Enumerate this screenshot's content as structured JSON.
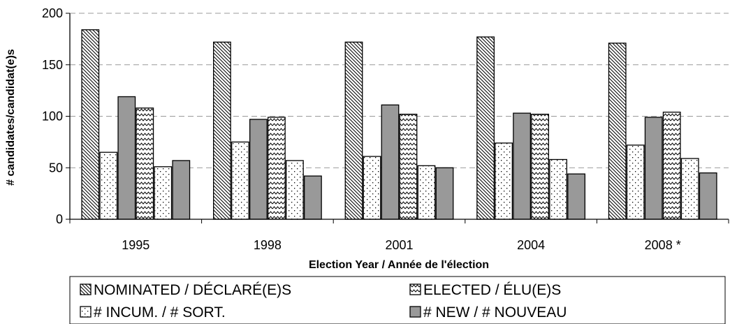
{
  "chart_data": {
    "type": "bar",
    "categories": [
      "1995",
      "1998",
      "2001",
      "2004",
      "2008 *"
    ],
    "series": [
      {
        "name": "NOMINATED / DÉCLARÉ(E)S",
        "pattern": "diagonal",
        "values": [
          184,
          172,
          172,
          177,
          171
        ]
      },
      {
        "name": "# INCUM. / # SORT.",
        "pattern": "dots",
        "values": [
          65,
          75,
          61,
          74,
          72
        ]
      },
      {
        "name": "# NEW  /  # NOUVEAU",
        "pattern": "solid",
        "values": [
          119,
          97,
          111,
          103,
          99
        ]
      },
      {
        "name": "ELECTED / ÉLU(E)S",
        "pattern": "wave",
        "values": [
          108,
          99,
          102,
          102,
          104
        ]
      },
      {
        "name": "",
        "pattern": "dots",
        "values": [
          51,
          57,
          52,
          58,
          59
        ]
      },
      {
        "name": "",
        "pattern": "solid",
        "values": [
          57,
          42,
          50,
          44,
          45
        ]
      }
    ],
    "xlabel": "Election Year / Année  de l'élection",
    "ylabel": "# candidates/candidat(e)s",
    "ylim": [
      0,
      200
    ],
    "yticks": [
      0,
      50,
      100,
      150,
      200
    ],
    "grid": "horizontal dashed",
    "legend_placement": "bottom",
    "legend": [
      {
        "label": "NOMINATED / DÉCLARÉ(E)S",
        "pattern": "diagonal"
      },
      {
        "label": "ELECTED / ÉLU(E)S",
        "pattern": "wave"
      },
      {
        "label": "# INCUM. / # SORT.",
        "pattern": "dots"
      },
      {
        "label": "# NEW  /  # NOUVEAU",
        "pattern": "solid"
      }
    ],
    "colors": {
      "solid_bar": "#999999",
      "outline": "#000000",
      "grid": "#999999"
    }
  }
}
